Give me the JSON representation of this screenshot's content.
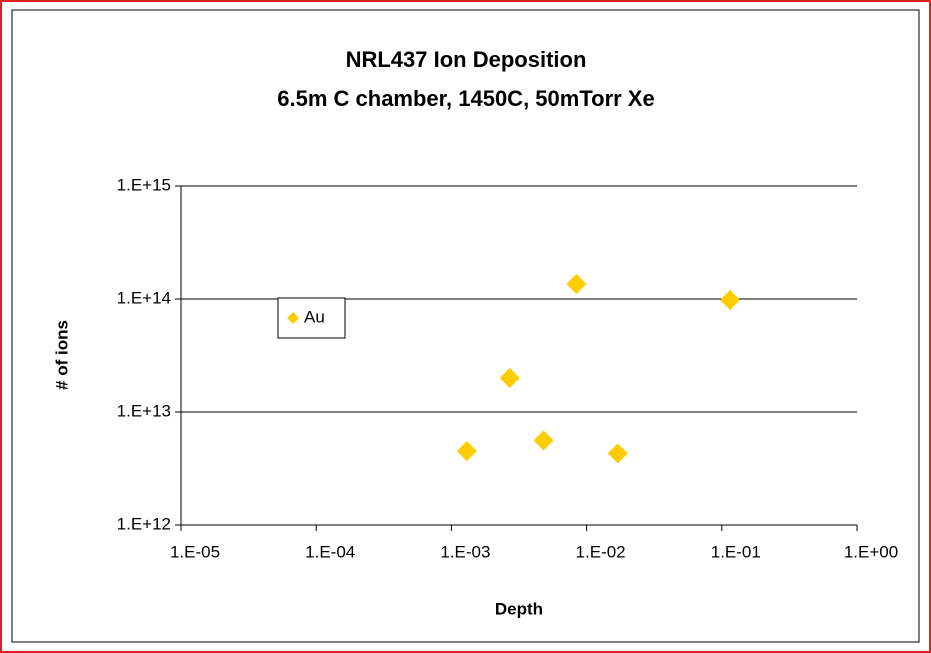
{
  "chart_data": {
    "type": "scatter",
    "title": "NRL437 Ion Deposition",
    "subtitle": "6.5m C chamber, 1450C, 50mTorr Xe",
    "xlabel": "Depth",
    "ylabel": "# of ions",
    "xscale": "log",
    "yscale": "log",
    "grid": true,
    "legend": "left",
    "series": [
      {
        "name": "Au",
        "color": "#FFCC00",
        "x": [
          0.0013,
          0.0027,
          0.0048,
          0.0084,
          0.017,
          0.115
        ],
        "values": [
          4500000000000.0,
          20000000000000.0,
          5600000000000.0,
          136000000000000.0,
          4300000000000.0,
          98000000000000.0
        ]
      }
    ],
    "xlim": [
      1e-05,
      1
    ],
    "xticks": [
      {
        "value": 1e-05,
        "label": "1.E-05"
      },
      {
        "value": 0.0001,
        "label": "1.E-04"
      },
      {
        "value": 0.001,
        "label": "1.E-03"
      },
      {
        "value": 0.01,
        "label": "1.E-02"
      },
      {
        "value": 0.1,
        "label": "1.E-01"
      },
      {
        "value": 1,
        "label": "1.E+00"
      }
    ],
    "ylim": [
      1000000000000.0,
      1000000000000000.0
    ],
    "yticks": [
      {
        "value": 1000000000000.0,
        "label": "1.E+12"
      },
      {
        "value": 10000000000000.0,
        "label": "1.E+13"
      },
      {
        "value": 100000000000000.0,
        "label": "1.E+14"
      },
      {
        "value": 1000000000000000.0,
        "label": "1.E+15"
      }
    ]
  }
}
